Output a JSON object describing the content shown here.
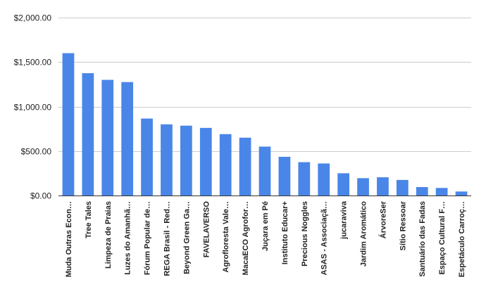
{
  "chart_data": {
    "type": "bar",
    "title": "",
    "xlabel": "",
    "ylabel": "",
    "ylim": [
      0,
      2000
    ],
    "yticks": [
      "$0.00",
      "$500.00",
      "$1,000.00",
      "$1,500.00",
      "$2,000.00"
    ],
    "grid": true,
    "bar_color": "#4a86e8",
    "categories": [
      "Muda Outras Econ…",
      "Tree Tales",
      "Limpeza de Praias",
      "Luzes do Amanhã…",
      "Fórum Popular de…",
      "REGA Brasil - Red…",
      "Beyond Green Ga…",
      "FAVELAVERSO",
      "Agrofloresta Vale…",
      "MacaECO Agrofor…",
      "Juçara em Pé",
      "Instituto Educar+",
      "Precious Noggles",
      "ASAS - Associaçã…",
      "jucaraviva",
      "Jardim Aromático",
      "ÁrvoreSer",
      "Sítio Ressoar",
      "Santuário das Fadas",
      "Espaço Cultural F…",
      "Espetáculo Carroç…"
    ],
    "values": [
      1600,
      1375,
      1300,
      1275,
      865,
      800,
      785,
      760,
      690,
      650,
      550,
      435,
      375,
      360,
      250,
      195,
      205,
      175,
      95,
      85,
      45
    ]
  }
}
